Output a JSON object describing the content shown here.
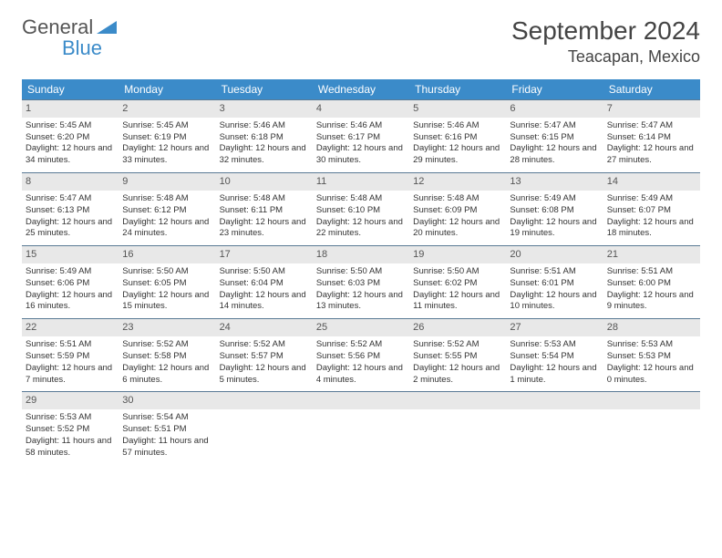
{
  "logo": {
    "line1": "General",
    "line2": "Blue"
  },
  "title": "September 2024",
  "location": "Teacapan, Mexico",
  "colors": {
    "header_bg": "#3b8bc9",
    "header_text": "#ffffff",
    "daynum_bg": "#e8e8e8",
    "border": "#5a7a95",
    "logo_gray": "#555555",
    "logo_blue": "#3b8bc9"
  },
  "daynames": [
    "Sunday",
    "Monday",
    "Tuesday",
    "Wednesday",
    "Thursday",
    "Friday",
    "Saturday"
  ],
  "days": [
    {
      "n": "1",
      "sr": "5:45 AM",
      "ss": "6:20 PM",
      "dl": "12 hours and 34 minutes."
    },
    {
      "n": "2",
      "sr": "5:45 AM",
      "ss": "6:19 PM",
      "dl": "12 hours and 33 minutes."
    },
    {
      "n": "3",
      "sr": "5:46 AM",
      "ss": "6:18 PM",
      "dl": "12 hours and 32 minutes."
    },
    {
      "n": "4",
      "sr": "5:46 AM",
      "ss": "6:17 PM",
      "dl": "12 hours and 30 minutes."
    },
    {
      "n": "5",
      "sr": "5:46 AM",
      "ss": "6:16 PM",
      "dl": "12 hours and 29 minutes."
    },
    {
      "n": "6",
      "sr": "5:47 AM",
      "ss": "6:15 PM",
      "dl": "12 hours and 28 minutes."
    },
    {
      "n": "7",
      "sr": "5:47 AM",
      "ss": "6:14 PM",
      "dl": "12 hours and 27 minutes."
    },
    {
      "n": "8",
      "sr": "5:47 AM",
      "ss": "6:13 PM",
      "dl": "12 hours and 25 minutes."
    },
    {
      "n": "9",
      "sr": "5:48 AM",
      "ss": "6:12 PM",
      "dl": "12 hours and 24 minutes."
    },
    {
      "n": "10",
      "sr": "5:48 AM",
      "ss": "6:11 PM",
      "dl": "12 hours and 23 minutes."
    },
    {
      "n": "11",
      "sr": "5:48 AM",
      "ss": "6:10 PM",
      "dl": "12 hours and 22 minutes."
    },
    {
      "n": "12",
      "sr": "5:48 AM",
      "ss": "6:09 PM",
      "dl": "12 hours and 20 minutes."
    },
    {
      "n": "13",
      "sr": "5:49 AM",
      "ss": "6:08 PM",
      "dl": "12 hours and 19 minutes."
    },
    {
      "n": "14",
      "sr": "5:49 AM",
      "ss": "6:07 PM",
      "dl": "12 hours and 18 minutes."
    },
    {
      "n": "15",
      "sr": "5:49 AM",
      "ss": "6:06 PM",
      "dl": "12 hours and 16 minutes."
    },
    {
      "n": "16",
      "sr": "5:50 AM",
      "ss": "6:05 PM",
      "dl": "12 hours and 15 minutes."
    },
    {
      "n": "17",
      "sr": "5:50 AM",
      "ss": "6:04 PM",
      "dl": "12 hours and 14 minutes."
    },
    {
      "n": "18",
      "sr": "5:50 AM",
      "ss": "6:03 PM",
      "dl": "12 hours and 13 minutes."
    },
    {
      "n": "19",
      "sr": "5:50 AM",
      "ss": "6:02 PM",
      "dl": "12 hours and 11 minutes."
    },
    {
      "n": "20",
      "sr": "5:51 AM",
      "ss": "6:01 PM",
      "dl": "12 hours and 10 minutes."
    },
    {
      "n": "21",
      "sr": "5:51 AM",
      "ss": "6:00 PM",
      "dl": "12 hours and 9 minutes."
    },
    {
      "n": "22",
      "sr": "5:51 AM",
      "ss": "5:59 PM",
      "dl": "12 hours and 7 minutes."
    },
    {
      "n": "23",
      "sr": "5:52 AM",
      "ss": "5:58 PM",
      "dl": "12 hours and 6 minutes."
    },
    {
      "n": "24",
      "sr": "5:52 AM",
      "ss": "5:57 PM",
      "dl": "12 hours and 5 minutes."
    },
    {
      "n": "25",
      "sr": "5:52 AM",
      "ss": "5:56 PM",
      "dl": "12 hours and 4 minutes."
    },
    {
      "n": "26",
      "sr": "5:52 AM",
      "ss": "5:55 PM",
      "dl": "12 hours and 2 minutes."
    },
    {
      "n": "27",
      "sr": "5:53 AM",
      "ss": "5:54 PM",
      "dl": "12 hours and 1 minute."
    },
    {
      "n": "28",
      "sr": "5:53 AM",
      "ss": "5:53 PM",
      "dl": "12 hours and 0 minutes."
    },
    {
      "n": "29",
      "sr": "5:53 AM",
      "ss": "5:52 PM",
      "dl": "11 hours and 58 minutes."
    },
    {
      "n": "30",
      "sr": "5:54 AM",
      "ss": "5:51 PM",
      "dl": "11 hours and 57 minutes."
    }
  ],
  "labels": {
    "sunrise": "Sunrise:",
    "sunset": "Sunset:",
    "daylight": "Daylight:"
  }
}
